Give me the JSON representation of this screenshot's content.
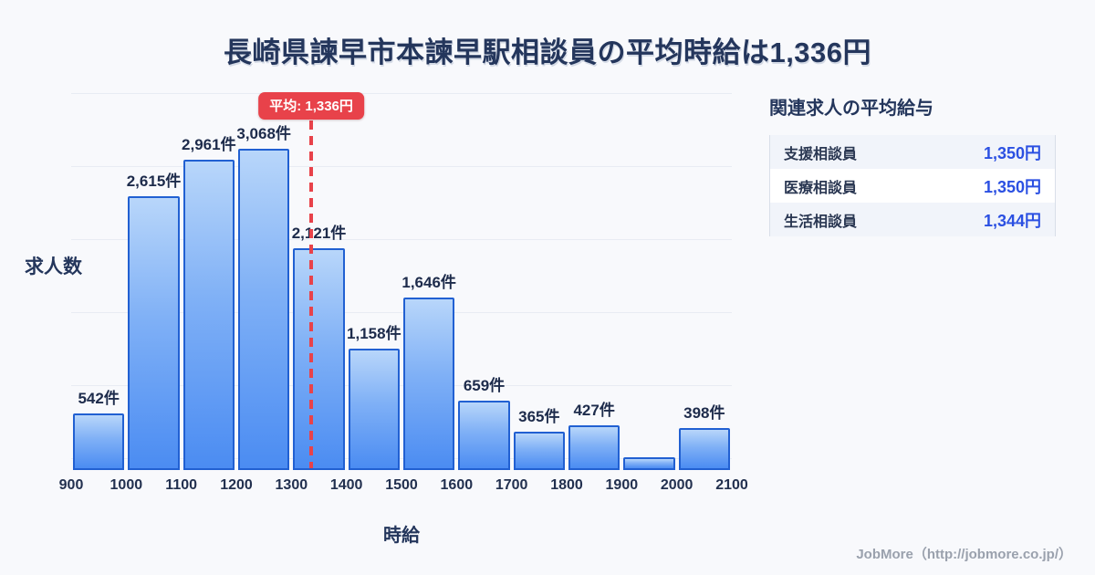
{
  "page": {
    "title": "長崎県諫早市本諫早駅相談員の平均時給は1,336円",
    "credit": "JobMore（http://jobmore.co.jp/）"
  },
  "chart_data": {
    "type": "bar",
    "title": "長崎県諫早市本諫早駅相談員の平均時給は1,336円",
    "xlabel": "時給",
    "ylabel": "求人数",
    "bin_edges": [
      900,
      1000,
      1100,
      1200,
      1300,
      1400,
      1500,
      1600,
      1700,
      1800,
      1900,
      2000,
      2100
    ],
    "x_tick_labels": [
      "900",
      "1000",
      "1100",
      "1200",
      "1300",
      "1400",
      "1500",
      "1600",
      "1700",
      "1800",
      "1900",
      "2000",
      "2100"
    ],
    "values": [
      542,
      2615,
      2961,
      3068,
      2121,
      1158,
      1646,
      659,
      365,
      427,
      122,
      398
    ],
    "bar_labels": [
      "542件",
      "2,615件",
      "2,961件",
      "3,068件",
      "2,121件",
      "1,158件",
      "1,646件",
      "659件",
      "365件",
      "427件",
      "",
      "398件"
    ],
    "average": {
      "value": 1336,
      "label": "平均: 1,336円"
    },
    "ylim": [
      0,
      3600
    ],
    "grid": "horizontal",
    "legend": false
  },
  "side_panel": {
    "heading": "関連求人の平均給与",
    "rows": [
      {
        "label": "支援相談員",
        "value": "1,350円"
      },
      {
        "label": "医療相談員",
        "value": "1,350円"
      },
      {
        "label": "生活相談員",
        "value": "1,344円"
      }
    ]
  },
  "colors": {
    "background": "#f8f9fc",
    "title_text": "#24365c",
    "bar_border": "#2160d2",
    "bar_gradient_top": "#b8d6fa",
    "bar_gradient_bottom": "#4b8cf2",
    "average_red": "#e8424a",
    "value_blue": "#2b50e2",
    "gridline": "#e8ecf3",
    "credit_gray": "#9aa1ad"
  }
}
